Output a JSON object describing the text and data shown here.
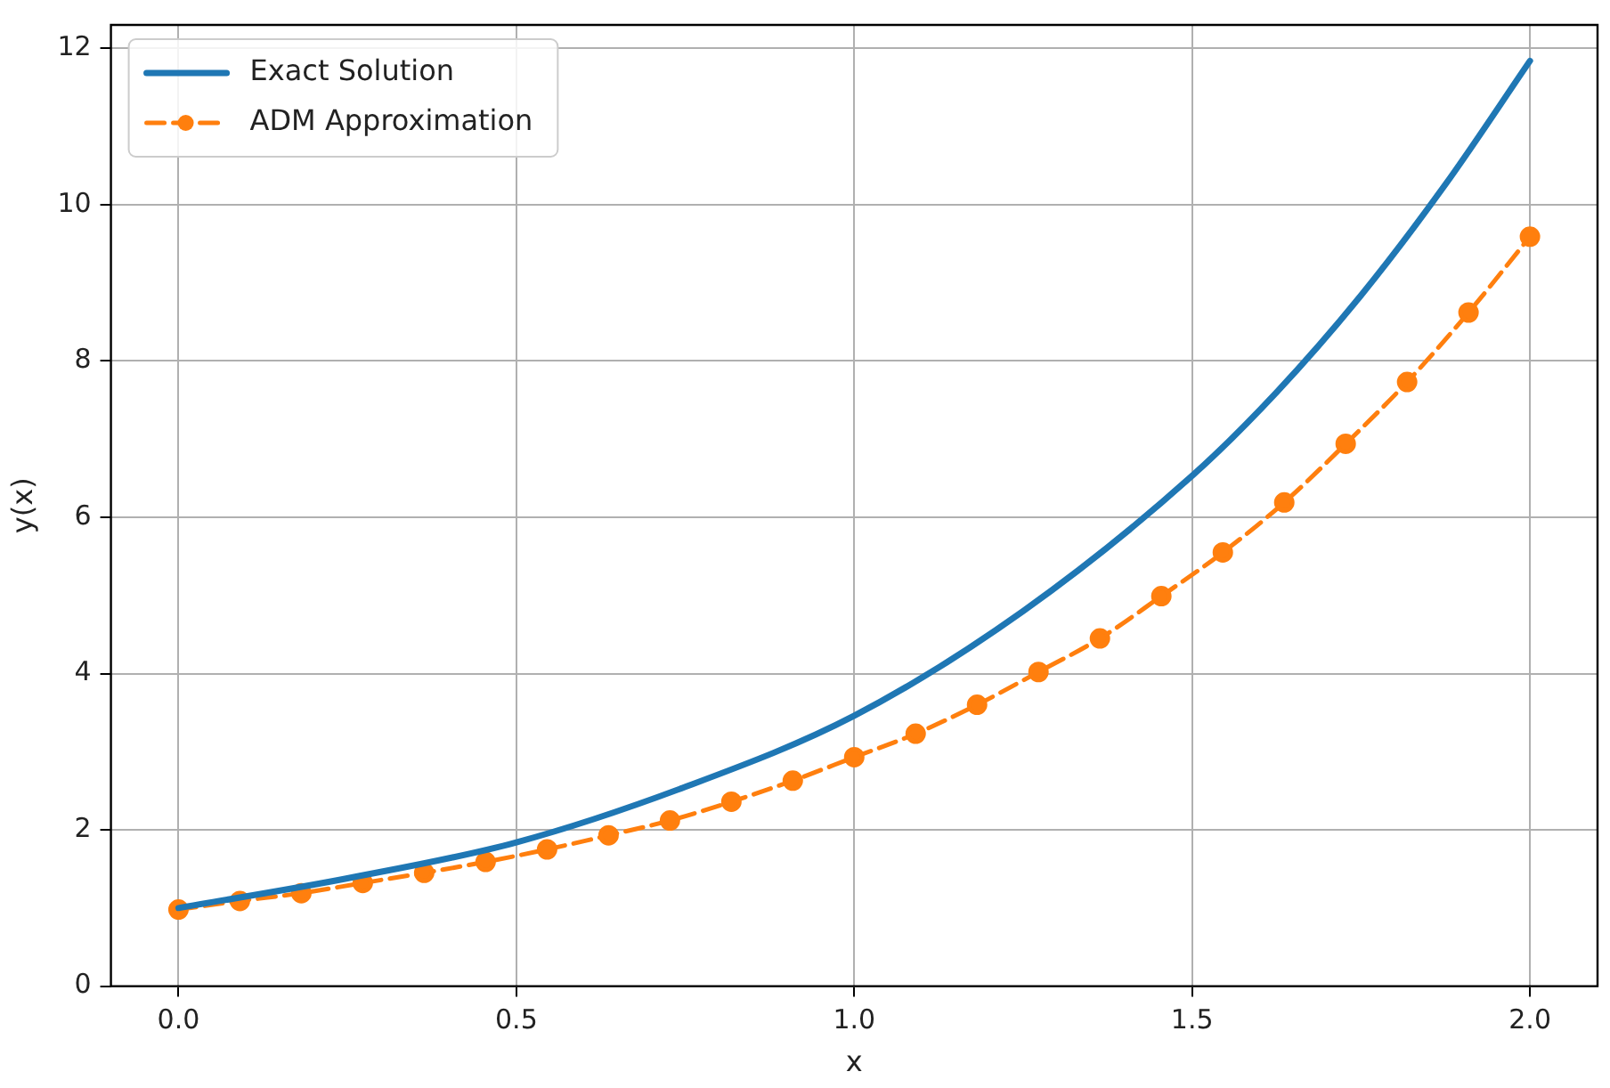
{
  "chart_data": {
    "type": "line",
    "xlabel": "x",
    "ylabel": "y(x)",
    "xlim": [
      -0.1,
      2.1
    ],
    "xticks": [
      {
        "value": 0,
        "label": "0.0"
      },
      {
        "value": 0.5,
        "label": "0.5"
      },
      {
        "value": 1,
        "label": "1.0"
      },
      {
        "value": 1.5,
        "label": "1.5"
      },
      {
        "value": 2,
        "label": "2.0"
      }
    ],
    "ylim": [
      0,
      12.3
    ],
    "yticks": [
      0,
      2,
      4,
      6,
      8,
      10,
      12
    ],
    "grid": true,
    "legend": "top left",
    "series": [
      {
        "name": "Exact Solution",
        "color": "#1f77b4",
        "marker": "none",
        "line_style": "solid",
        "x": [
          0,
          0.25,
          0.5,
          0.75,
          1.0,
          1.25,
          1.5,
          1.625,
          1.75,
          1.875,
          2.0
        ],
        "values": [
          1.0,
          1.38,
          1.84,
          2.55,
          3.46,
          4.8,
          6.53,
          7.6,
          8.84,
          10.26,
          11.84
        ]
      },
      {
        "name": "ADM Approximation",
        "color": "#ff7f0e",
        "marker": "circle",
        "line_style": "dashed",
        "x": [
          0,
          0.0909,
          0.1818,
          0.2727,
          0.3636,
          0.4545,
          0.5455,
          0.6364,
          0.7273,
          0.8182,
          0.9091,
          1.0,
          1.0909,
          1.1818,
          1.2727,
          1.3636,
          1.4545,
          1.5455,
          1.6364,
          1.7273,
          1.8182,
          1.9091,
          2.0
        ],
        "values": [
          0.98,
          1.09,
          1.19,
          1.32,
          1.45,
          1.59,
          1.75,
          1.93,
          2.12,
          2.36,
          2.63,
          2.93,
          3.23,
          3.6,
          4.02,
          4.45,
          4.99,
          5.55,
          6.19,
          6.94,
          7.73,
          8.62,
          9.59
        ]
      }
    ]
  }
}
